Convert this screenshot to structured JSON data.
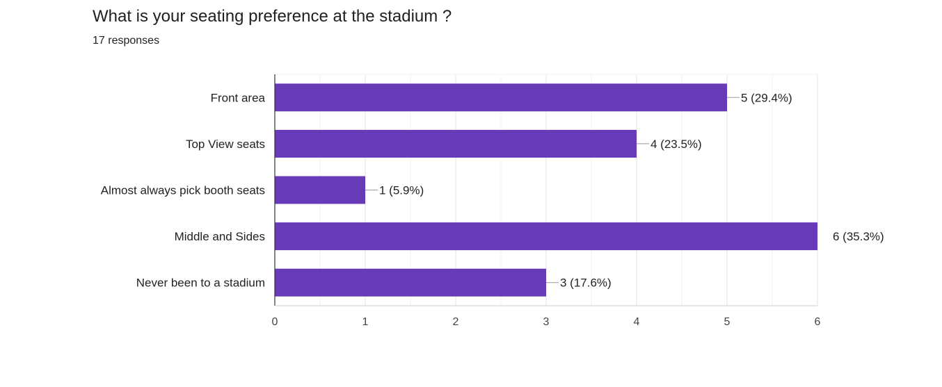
{
  "question": {
    "title": "What is your seating preference at the stadium ?",
    "responses": "17 responses"
  },
  "colors": {
    "bar": "#673AB7",
    "grid": "#ebebeb",
    "axis": "#333333",
    "leader": "#999999"
  },
  "chart_data": {
    "type": "bar",
    "orientation": "horizontal",
    "title": "What is your seating preference at the stadium ?",
    "categories": [
      "Front area",
      "Top View seats",
      "Almost always pick booth seats",
      "Middle and Sides",
      "Never been to a stadium"
    ],
    "values": [
      5,
      4,
      1,
      6,
      3
    ],
    "data_labels": [
      "5 (29.4%)",
      "4 (23.5%)",
      "1 (5.9%)",
      "6 (35.3%)",
      "3 (17.6%)"
    ],
    "xlim": [
      0,
      6
    ],
    "xticks": [
      0,
      1,
      2,
      3,
      4,
      5,
      6
    ],
    "grid": true,
    "xlabel": "",
    "ylabel": ""
  }
}
